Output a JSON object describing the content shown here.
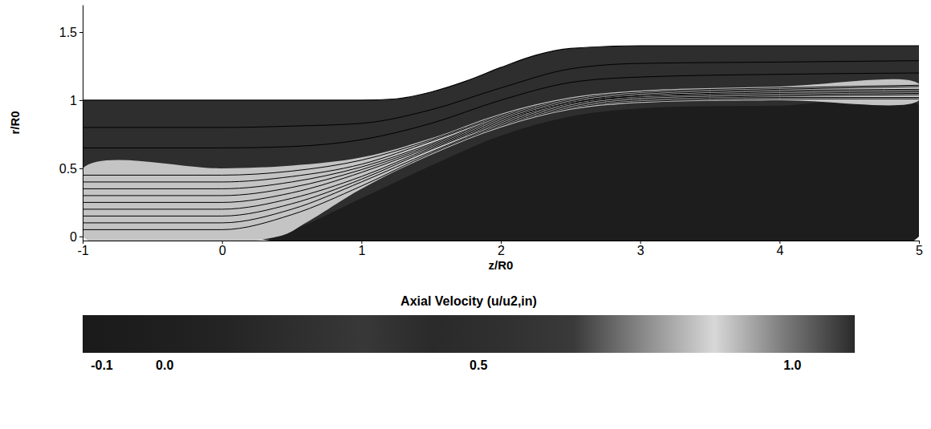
{
  "chart_data": {
    "type": "contour",
    "x_label": "z/R0",
    "y_label": "r/R0",
    "xlim": [
      -1,
      5
    ],
    "ylim": [
      -0.03,
      1.7
    ],
    "xticks": [
      -1,
      0,
      1,
      2,
      3,
      4,
      5
    ],
    "yticks": [
      0,
      0.5,
      1,
      1.5
    ],
    "wall": {
      "x": [
        -1,
        0,
        1,
        1.25,
        1.5,
        1.75,
        2,
        2.25,
        2.5,
        3,
        4,
        5
      ],
      "values": [
        1,
        1,
        1,
        1.01,
        1.06,
        1.14,
        1.24,
        1.33,
        1.38,
        1.4,
        1.4,
        1.4
      ]
    },
    "field_value": 0.4,
    "regions": [
      {
        "value": -0.05,
        "x": [
          0.2,
          0.5,
          1,
          1.5,
          2,
          2.5,
          3,
          4,
          5,
          5
        ],
        "values": [
          0,
          0.05,
          0.28,
          0.52,
          0.74,
          0.88,
          0.94,
          0.96,
          0.96,
          0
        ]
      },
      {
        "value": 0.9,
        "x": [
          -1,
          0,
          0.5,
          1,
          1.5,
          2,
          2.5,
          3,
          4,
          5,
          5,
          4,
          3,
          2.5,
          2,
          1.5,
          1,
          0.6,
          0.4,
          -1
        ],
        "values": [
          0.5,
          0.5,
          0.52,
          0.58,
          0.72,
          0.9,
          1.02,
          1.07,
          1.1,
          1.12,
          1.0,
          1.0,
          0.98,
          0.93,
          0.8,
          0.6,
          0.35,
          0.1,
          0,
          0
        ]
      }
    ],
    "x": [
      -1,
      0,
      0.5,
      1,
      1.5,
      2,
      2.5,
      3,
      4,
      5
    ],
    "series": [
      {
        "values": [
          0.05,
          0.05,
          0.16,
          0.37,
          0.61,
          0.81,
          0.94,
          0.99,
          1.01,
          1.01
        ]
      },
      {
        "values": [
          0.1,
          0.1,
          0.2,
          0.4,
          0.62,
          0.82,
          0.95,
          1.0,
          1.02,
          1.02
        ]
      },
      {
        "values": [
          0.15,
          0.15,
          0.24,
          0.42,
          0.64,
          0.83,
          0.96,
          1.01,
          1.03,
          1.04
        ]
      },
      {
        "values": [
          0.2,
          0.2,
          0.28,
          0.44,
          0.65,
          0.84,
          0.97,
          1.02,
          1.04,
          1.05
        ]
      },
      {
        "values": [
          0.25,
          0.25,
          0.32,
          0.47,
          0.66,
          0.85,
          0.98,
          1.03,
          1.05,
          1.06
        ]
      },
      {
        "values": [
          0.3,
          0.3,
          0.36,
          0.49,
          0.67,
          0.86,
          0.98,
          1.03,
          1.06,
          1.07
        ]
      },
      {
        "values": [
          0.35,
          0.35,
          0.4,
          0.51,
          0.68,
          0.87,
          0.99,
          1.04,
          1.07,
          1.08
        ]
      },
      {
        "values": [
          0.4,
          0.4,
          0.44,
          0.53,
          0.7,
          0.88,
          1.0,
          1.05,
          1.08,
          1.1
        ]
      },
      {
        "values": [
          0.45,
          0.45,
          0.48,
          0.56,
          0.71,
          0.89,
          1.01,
          1.06,
          1.09,
          1.11
        ]
      },
      {
        "values": [
          0.65,
          0.65,
          0.66,
          0.71,
          0.83,
          1.0,
          1.13,
          1.17,
          1.19,
          1.2
        ]
      },
      {
        "values": [
          0.8,
          0.8,
          0.81,
          0.83,
          0.93,
          1.09,
          1.23,
          1.27,
          1.28,
          1.29
        ]
      }
    ],
    "color": "#000000",
    "colorbar": {
      "title": "Axial Velocity  (u/u2,in)",
      "range": [
        -0.13,
        1.1
      ],
      "ticks": [
        -0.1,
        {
          "value": 0,
          "label": "0.0"
        },
        0.5,
        {
          "value": 1,
          "label": "1.0"
        }
      ],
      "colors": [
        "#1a1a1a",
        "#1e1e1e",
        "#242424",
        "#2e2e2e",
        "#383838",
        "#2a2a2a",
        "#303030",
        "#3a3a3a",
        "#8a8a8a",
        "#d8d8d8",
        "#7a7a7a",
        "#2a2a2a"
      ]
    }
  }
}
